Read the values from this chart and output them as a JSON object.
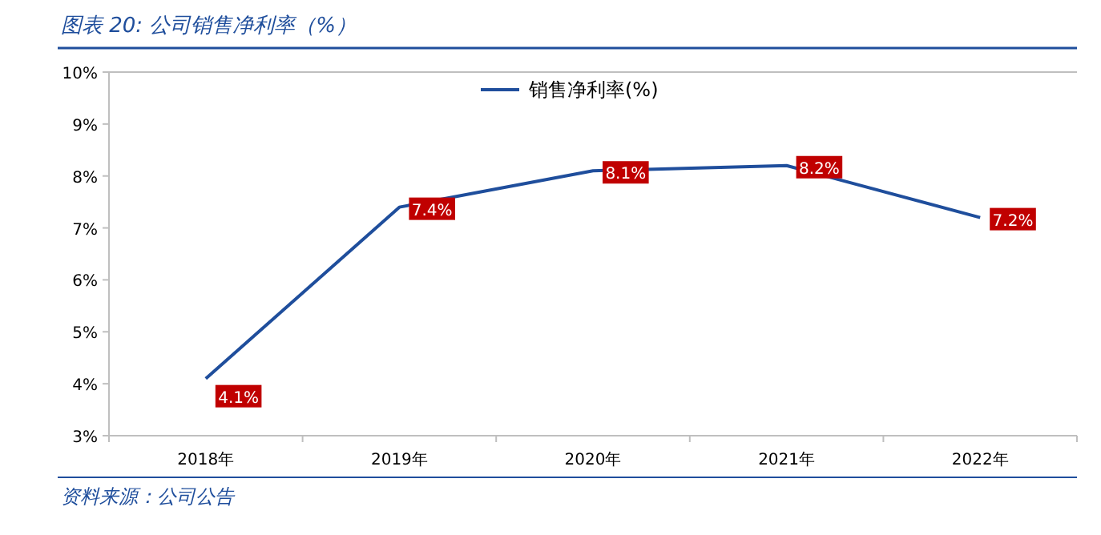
{
  "chart_data": {
    "type": "line",
    "title": "图表 20:  公司销售净利率（%）",
    "annotations": [
      "资料来源：公司公告"
    ],
    "categories": [
      "2018年",
      "2019年",
      "2020年",
      "2021年",
      "2022年"
    ],
    "series": [
      {
        "name": "销售净利率(%)",
        "color": "#1f4e9c",
        "values": [
          4.1,
          7.4,
          8.1,
          8.2,
          7.2
        ],
        "value_labels": [
          "4.1%",
          "7.4%",
          "8.1%",
          "8.2%",
          "7.2%"
        ]
      }
    ],
    "ylim": [
      3,
      10
    ],
    "yticks": [
      {
        "value": 3,
        "label": "3%"
      },
      {
        "value": 4,
        "label": "4%"
      },
      {
        "value": 5,
        "label": "5%"
      },
      {
        "value": 6,
        "label": "6%"
      },
      {
        "value": 7,
        "label": "7%"
      },
      {
        "value": 8,
        "label": "8%"
      },
      {
        "value": 9,
        "label": "9%"
      },
      {
        "value": 10,
        "label": "10%"
      }
    ],
    "legend": "top",
    "line_style": "solid"
  }
}
